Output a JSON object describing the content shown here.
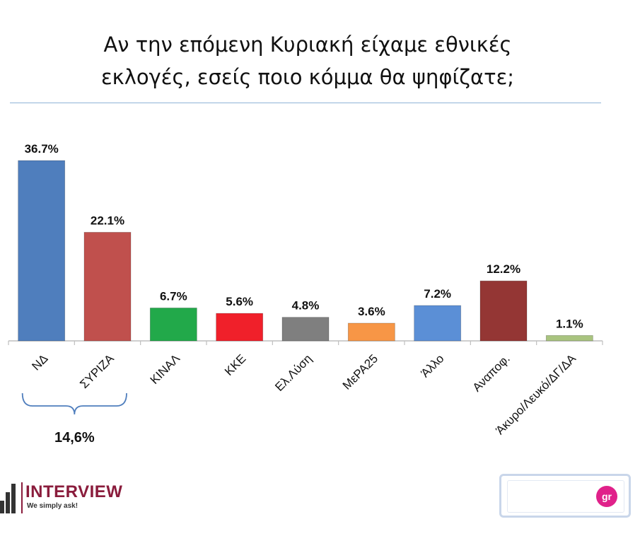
{
  "chart_data": {
    "type": "bar",
    "title_lines": [
      "Αν την επόμενη Κυριακή είχαμε εθνικές",
      "εκλογές, εσείς ποιο κόμμα θα ψηφίζατε;"
    ],
    "categories": [
      "ΝΔ",
      "ΣΥΡΙΖΑ",
      "ΚΙΝΑΛ",
      "ΚΚΕ",
      "Ελ.Λύση",
      "ΜεΡΑ25",
      "Άλλο",
      "Αναποφ.",
      "Άκυρο/Λευκό/ΔΓ/ΔΑ"
    ],
    "values": [
      36.7,
      22.1,
      6.7,
      5.6,
      4.8,
      3.6,
      7.2,
      12.2,
      1.1
    ],
    "value_labels": [
      "36.7%",
      "22.1%",
      "6.7%",
      "5.6%",
      "4.8%",
      "3.6%",
      "7.2%",
      "12.2%",
      "1.1%"
    ],
    "colors": [
      "#4f7ebd",
      "#c0504d",
      "#22a94a",
      "#f0202a",
      "#7f7f7f",
      "#f79646",
      "#5b8fd6",
      "#943634",
      "#a9c47f"
    ],
    "ylim": [
      0,
      36.7
    ],
    "grid": false,
    "annotation": {
      "text": "14,6%",
      "spans": [
        "ΝΔ",
        "ΣΥΡΙΖΑ"
      ],
      "color": "#4f7ebd"
    }
  },
  "logo": {
    "name": "INTERVIEW",
    "tagline": "We simply ask!"
  },
  "badge": {
    "icon": "gr-icon",
    "text": "gr"
  }
}
